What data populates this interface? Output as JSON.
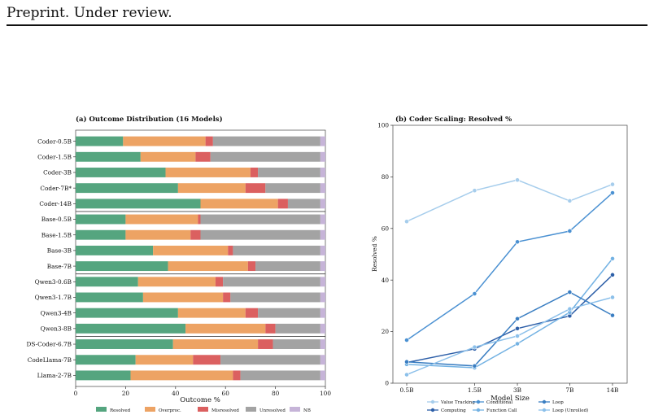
{
  "header": {
    "text": "Preprint. Under review."
  },
  "chart_data": [
    {
      "type": "bar",
      "orientation": "horizontal",
      "stacked": true,
      "title": "(a)  Outcome Distribution (16 Models)",
      "xlabel": "Outcome %",
      "ylabel": "",
      "xlim": [
        0,
        100
      ],
      "xticks": [
        "0",
        "20",
        "40",
        "60",
        "80",
        "100"
      ],
      "legend_position": "bottom",
      "categories": [
        "Coder-0.5B",
        "Coder-1.5B",
        "Coder-3B",
        "Coder-7B*",
        "Coder-14B",
        "Base-0.5B",
        "Base-1.5B",
        "Base-3B",
        "Base-7B",
        "Qwen3-0.6B",
        "Qwen3-1.7B",
        "Qwen3-4B",
        "Qwen3-8B",
        "DS-Coder-6.7B",
        "CodeLlama-7B",
        "Llama-2-7B"
      ],
      "group_separators_after": [
        4,
        8,
        12
      ],
      "series": [
        {
          "name": "Resolved",
          "color": "#55a57f",
          "values": [
            19,
            26,
            36,
            41,
            50,
            20,
            20,
            31,
            37,
            25,
            27,
            41,
            44,
            39,
            24,
            22
          ]
        },
        {
          "name": "Overproc.",
          "color": "#eda364",
          "values": [
            33,
            22,
            34,
            27,
            31,
            29,
            26,
            30,
            32,
            31,
            32,
            27,
            32,
            34,
            23,
            41
          ]
        },
        {
          "name": "Misresolved",
          "color": "#db6060",
          "values": [
            3,
            6,
            3,
            8,
            4,
            1,
            4,
            2,
            3,
            3,
            3,
            5,
            4,
            6,
            11,
            3
          ]
        },
        {
          "name": "Unresolved",
          "color": "#a3a3a3",
          "values": [
            43,
            44,
            25,
            22,
            13,
            48,
            48,
            35,
            26,
            39,
            36,
            25,
            18,
            19,
            40,
            32
          ]
        },
        {
          "name": "NB",
          "color": "#c6b4d8",
          "values": [
            2,
            2,
            2,
            2,
            2,
            2,
            2,
            2,
            2,
            2,
            2,
            2,
            2,
            2,
            2,
            2
          ]
        }
      ]
    },
    {
      "type": "line",
      "title": "(b)  Coder Scaling: Resolved %",
      "xlabel": "Model Size",
      "ylabel": "Resolved %",
      "x": [
        "0.5B",
        "1.5B",
        "3B",
        "7B",
        "14B"
      ],
      "x_scale": "log",
      "x_values_billions": [
        0.5,
        1.5,
        3,
        7,
        14
      ],
      "ylim": [
        0,
        100
      ],
      "yticks": [
        "0",
        "20",
        "40",
        "60",
        "80",
        "100"
      ],
      "legend_position": "bottom",
      "series": [
        {
          "name": "Value Tracking",
          "color": "#a6cdec",
          "values": [
            62.7,
            74.7,
            78.8,
            70.7,
            77.1
          ]
        },
        {
          "name": "Computing",
          "color": "#2d5fa8",
          "values": [
            8.0,
            13.3,
            21.2,
            26.1,
            42.0
          ]
        },
        {
          "name": "Conditional",
          "color": "#4b91d2",
          "values": [
            16.7,
            34.7,
            54.8,
            59.0,
            73.8
          ]
        },
        {
          "name": "Function Call",
          "color": "#73b2e3",
          "values": [
            7.3,
            6.0,
            15.3,
            27.5,
            48.3
          ]
        },
        {
          "name": "Loop",
          "color": "#3a7ec2",
          "values": [
            8.3,
            6.7,
            25.0,
            35.3,
            26.3
          ]
        },
        {
          "name": "Loop (Unrolled)",
          "color": "#8cc0ea",
          "values": [
            3.3,
            14.0,
            18.3,
            28.8,
            33.3
          ]
        }
      ]
    }
  ]
}
